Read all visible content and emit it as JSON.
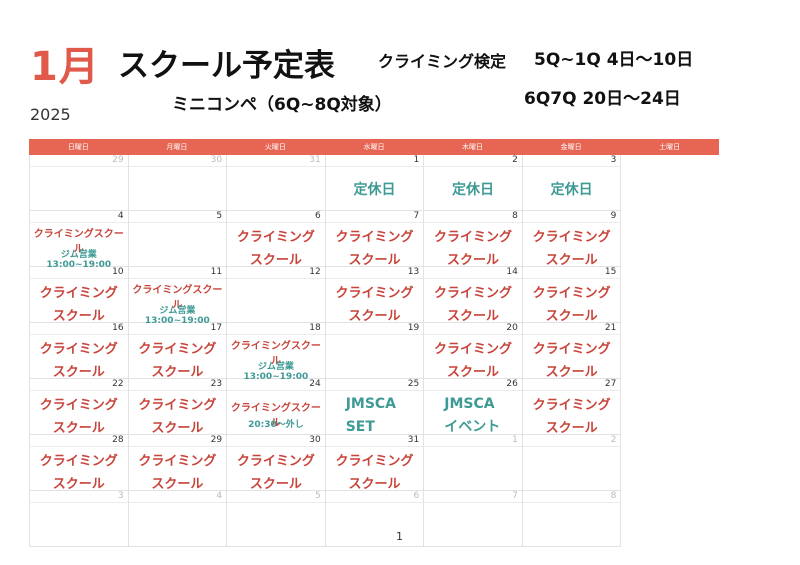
{
  "header": {
    "month": "1月",
    "title": "スクール予定表",
    "year": "2025",
    "subtitle": "ミニコンペ（6Q~8Q対象）",
    "kentei_label": "クライミング検定",
    "kentei_line1": "5Q~1Q  4日〜10日",
    "kentei_line2": "6Q7Q   20日〜24日"
  },
  "calendar": {
    "weekdays": [
      "日曜日",
      "月曜日",
      "火曜日",
      "水曜日",
      "木曜日",
      "金曜日",
      "土曜日"
    ],
    "cells": [
      {
        "num": "29",
        "other": true,
        "type": "none"
      },
      {
        "num": "30",
        "other": true,
        "type": "none"
      },
      {
        "num": "31",
        "other": true,
        "type": "none"
      },
      {
        "num": "1",
        "type": "closed",
        "lines": [
          "定休日"
        ]
      },
      {
        "num": "2",
        "type": "closed",
        "lines": [
          "定休日"
        ]
      },
      {
        "num": "3",
        "type": "closed",
        "lines": [
          "定休日"
        ]
      },
      {
        "num": "4",
        "type": "sat",
        "lines": [
          "クライミングスクール",
          "ジム営業13:00~19:00"
        ]
      },
      {
        "num": "5",
        "type": "none"
      },
      {
        "num": "6",
        "type": "school",
        "lines": [
          "クライミング",
          "スクール"
        ]
      },
      {
        "num": "7",
        "type": "school",
        "lines": [
          "クライミング",
          "スクール"
        ]
      },
      {
        "num": "8",
        "type": "school",
        "lines": [
          "クライミング",
          "スクール"
        ]
      },
      {
        "num": "9",
        "type": "school",
        "lines": [
          "クライミング",
          "スクール"
        ]
      },
      {
        "num": "10",
        "type": "school",
        "lines": [
          "クライミング",
          "スクール"
        ]
      },
      {
        "num": "11",
        "type": "sat",
        "lines": [
          "クライミングスクール",
          "ジム営業13:00~19:00"
        ]
      },
      {
        "num": "12",
        "type": "none"
      },
      {
        "num": "13",
        "type": "school",
        "lines": [
          "クライミング",
          "スクール"
        ]
      },
      {
        "num": "14",
        "type": "school",
        "lines": [
          "クライミング",
          "スクール"
        ]
      },
      {
        "num": "15",
        "type": "school",
        "lines": [
          "クライミング",
          "スクール"
        ]
      },
      {
        "num": "16",
        "type": "school",
        "lines": [
          "クライミング",
          "スクール"
        ]
      },
      {
        "num": "17",
        "type": "school",
        "lines": [
          "クライミング",
          "スクール"
        ]
      },
      {
        "num": "18",
        "type": "sat",
        "lines": [
          "クライミングスクール",
          "ジム営業13:00~19:00"
        ]
      },
      {
        "num": "19",
        "type": "none"
      },
      {
        "num": "20",
        "type": "school",
        "lines": [
          "クライミング",
          "スクール"
        ]
      },
      {
        "num": "21",
        "type": "school",
        "lines": [
          "クライミング",
          "スクール"
        ]
      },
      {
        "num": "22",
        "type": "school",
        "lines": [
          "クライミング",
          "スクール"
        ]
      },
      {
        "num": "23",
        "type": "school",
        "lines": [
          "クライミング",
          "スクール"
        ]
      },
      {
        "num": "24",
        "type": "ev24",
        "lines": [
          "クライミングスクール",
          "20:30〜外し"
        ]
      },
      {
        "num": "25",
        "type": "jmsca",
        "lines": [
          "JMSCA",
          "SET"
        ]
      },
      {
        "num": "26",
        "type": "jmsca",
        "lines": [
          "JMSCA",
          "イベント"
        ]
      },
      {
        "num": "27",
        "type": "school",
        "lines": [
          "クライミング",
          "スクール"
        ]
      },
      {
        "num": "28",
        "type": "school",
        "lines": [
          "クライミング",
          "スクール"
        ]
      },
      {
        "num": "29",
        "type": "school",
        "lines": [
          "クライミング",
          "スクール"
        ]
      },
      {
        "num": "30",
        "type": "school",
        "lines": [
          "クライミング",
          "スクール"
        ]
      },
      {
        "num": "31",
        "type": "school",
        "lines": [
          "クライミング",
          "スクール"
        ]
      },
      {
        "num": "1",
        "other": true,
        "type": "none"
      },
      {
        "num": "2",
        "other": true,
        "type": "none"
      },
      {
        "num": "3",
        "other": true,
        "type": "none"
      },
      {
        "num": "4",
        "other": true,
        "type": "none"
      },
      {
        "num": "5",
        "other": true,
        "type": "none"
      },
      {
        "num": "6",
        "other": true,
        "type": "none"
      },
      {
        "num": "7",
        "other": true,
        "type": "none"
      },
      {
        "num": "8",
        "other": true,
        "type": "none"
      }
    ]
  },
  "page_number": "1",
  "colors": {
    "accent": "#e66553",
    "month_red": "#e0594a",
    "school_red": "#c8443a",
    "teal": "#3e9a95"
  }
}
